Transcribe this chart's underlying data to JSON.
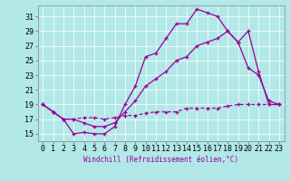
{
  "xlabel": "Windchill (Refroidissement éolien,°C)",
  "background_color": "#b2e8e8",
  "line_color": "#990099",
  "grid_color": "#ffffff",
  "xlim": [
    -0.5,
    23.5
  ],
  "ylim": [
    14.0,
    32.5
  ],
  "yticks": [
    15,
    17,
    19,
    21,
    23,
    25,
    27,
    29,
    31
  ],
  "xticks": [
    0,
    1,
    2,
    3,
    4,
    5,
    6,
    7,
    8,
    9,
    10,
    11,
    12,
    13,
    14,
    15,
    16,
    17,
    18,
    19,
    20,
    21,
    22,
    23
  ],
  "series1_x": [
    0,
    1,
    2,
    3,
    4,
    5,
    6,
    7,
    8,
    9,
    10,
    11,
    12,
    13,
    14,
    15,
    16,
    17,
    18,
    19,
    20,
    21,
    22,
    23
  ],
  "series1_y": [
    19,
    18,
    17,
    15,
    15.2,
    15,
    15,
    16,
    19,
    21.5,
    25.5,
    26,
    28,
    30,
    30,
    32,
    31.5,
    31,
    29,
    27.5,
    29,
    23.5,
    19,
    19
  ],
  "series2_x": [
    0,
    1,
    2,
    3,
    4,
    5,
    6,
    7,
    8,
    9,
    10,
    11,
    12,
    13,
    14,
    15,
    16,
    17,
    18,
    19,
    20,
    21,
    22,
    23
  ],
  "series2_y": [
    19,
    18,
    17,
    17,
    17.2,
    17.2,
    17,
    17.2,
    17.5,
    17.5,
    17.8,
    18,
    18,
    18,
    18.5,
    18.5,
    18.5,
    18.5,
    18.8,
    19,
    19,
    19,
    19,
    19
  ],
  "series3_x": [
    0,
    1,
    2,
    3,
    4,
    5,
    6,
    7,
    8,
    9,
    10,
    11,
    12,
    13,
    14,
    15,
    16,
    17,
    18,
    19,
    20,
    21,
    22,
    23
  ],
  "series3_y": [
    19,
    18,
    17,
    17,
    16.5,
    16,
    16,
    16.5,
    18,
    19.5,
    21.5,
    22.5,
    23.5,
    25,
    25.5,
    27,
    27.5,
    28,
    29,
    27.5,
    24,
    23,
    19.5,
    19
  ],
  "tick_fontsize": 6,
  "xlabel_fontsize": 5.5
}
